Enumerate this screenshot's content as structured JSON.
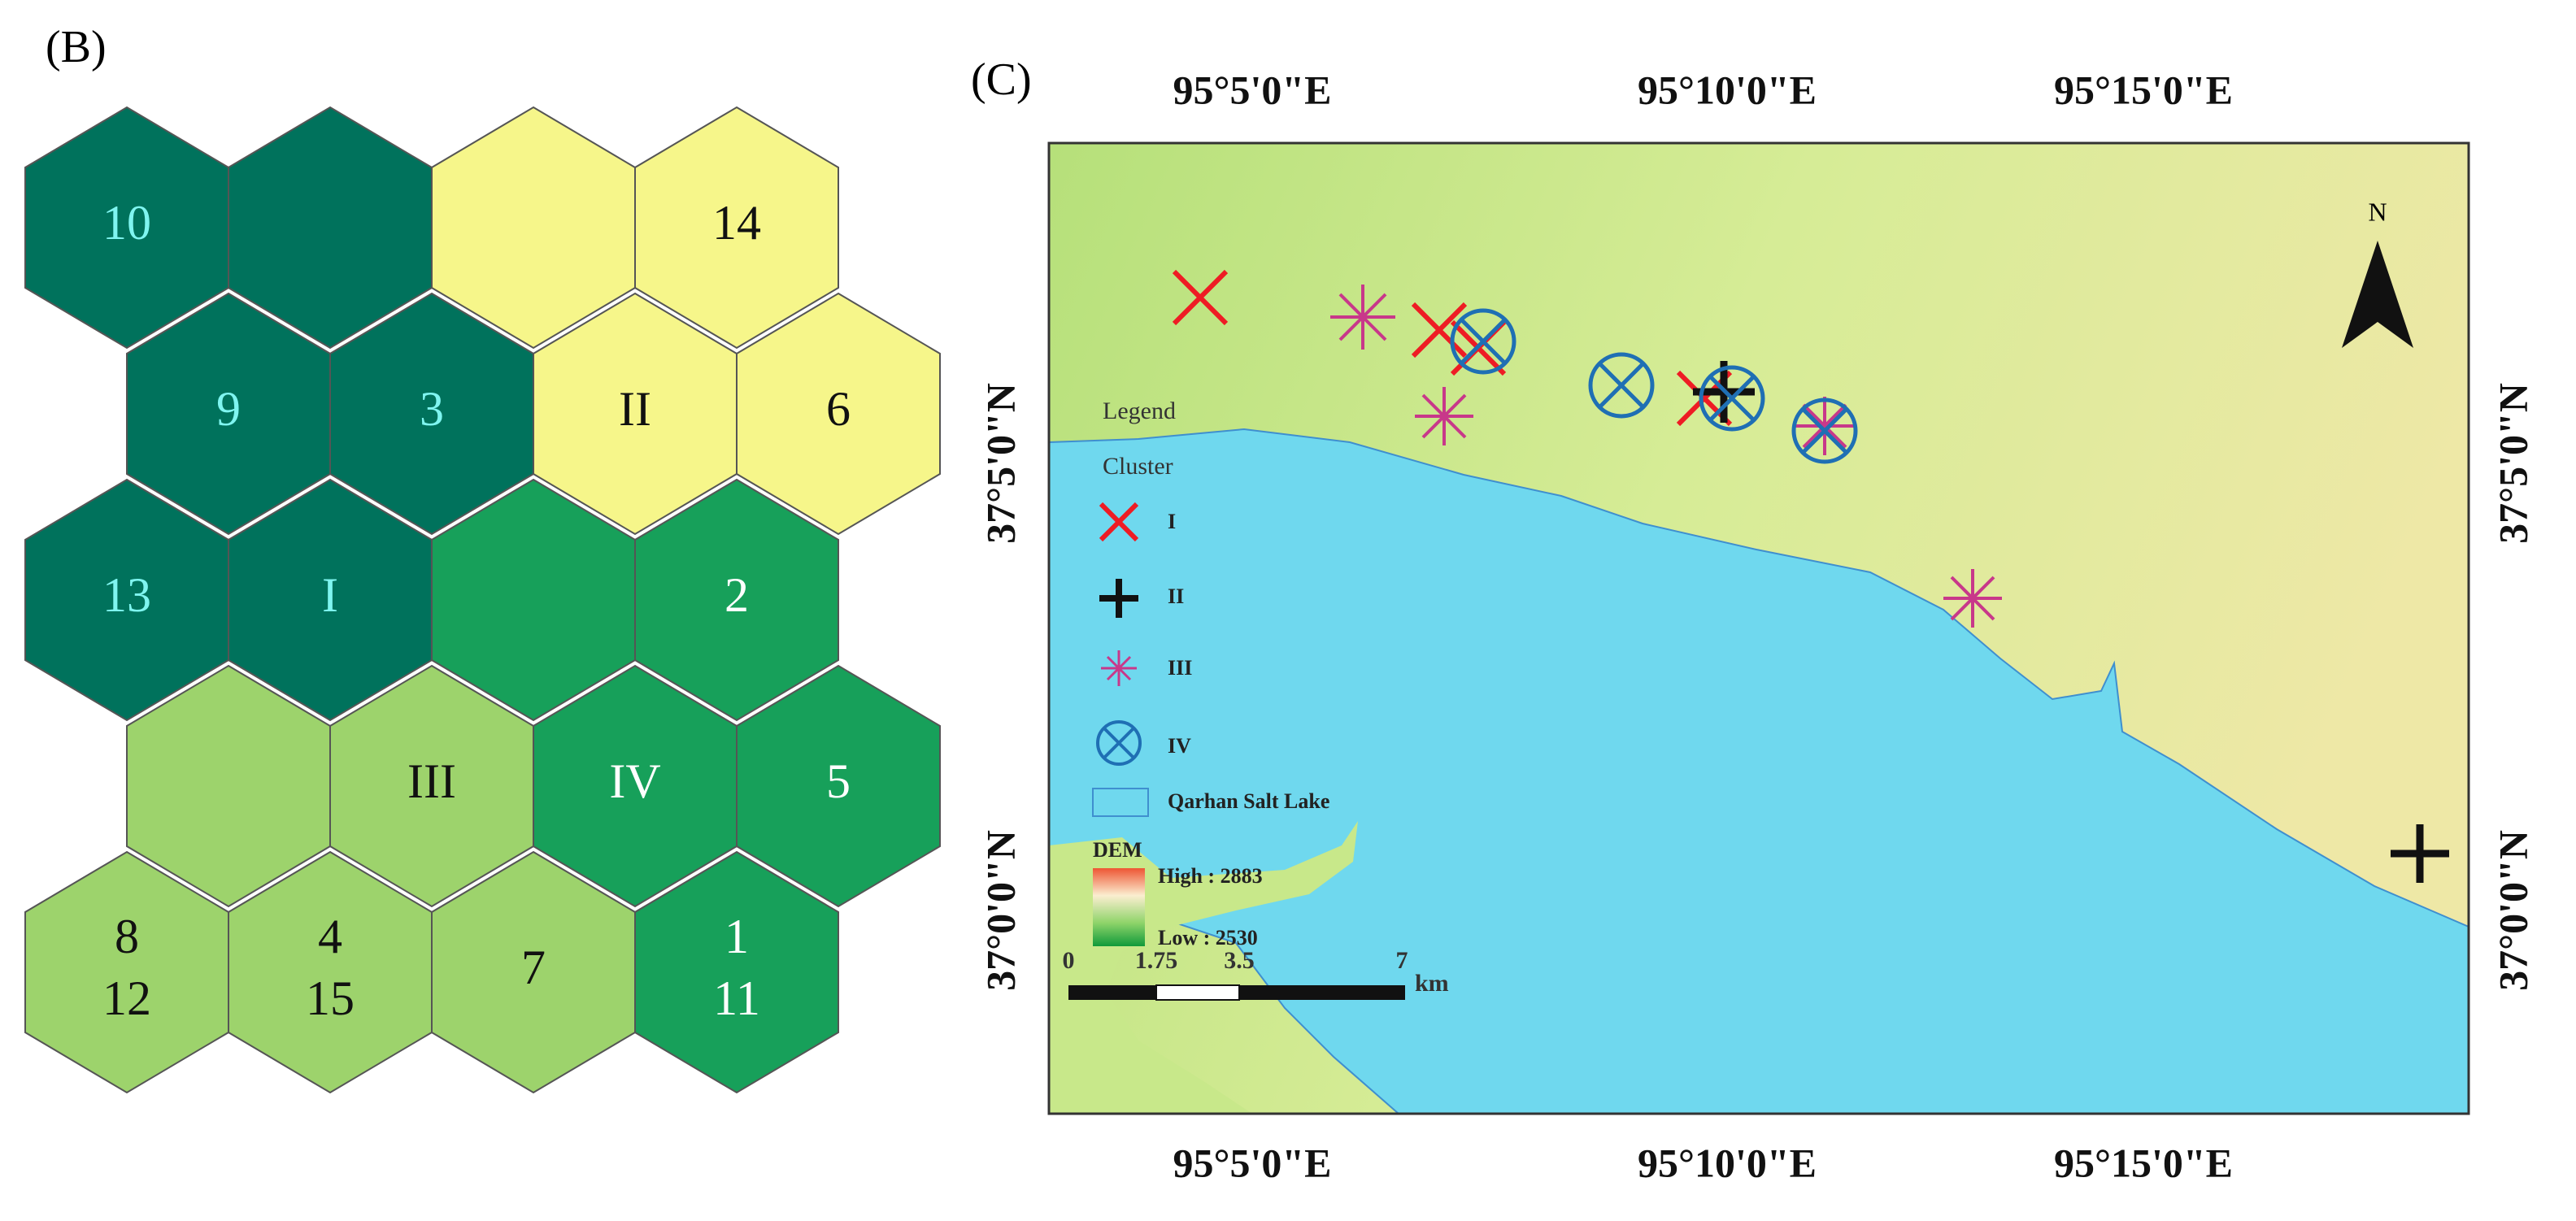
{
  "panel_b": {
    "label": "(B)",
    "rows": [
      [
        {
          "lines": [
            "10"
          ],
          "color": "#00725c",
          "text_color": "#7ff5f0"
        },
        {
          "color": "#00725c"
        },
        {
          "color": "#f6f68a"
        },
        {
          "lines": [
            "14"
          ],
          "color": "#f6f68a",
          "text_color": "#111111"
        }
      ],
      [
        {
          "lines": [
            "9"
          ],
          "color": "#00725c",
          "text_color": "#7ff5f0"
        },
        {
          "lines": [
            "3"
          ],
          "color": "#00725c",
          "text_color": "#7ff5f0"
        },
        {
          "lines": [
            "II"
          ],
          "color": "#f6f68a",
          "text_color": "#111111"
        },
        {
          "lines": [
            "6"
          ],
          "color": "#f6f68a",
          "text_color": "#111111"
        }
      ],
      [
        {
          "lines": [
            "13"
          ],
          "color": "#00725c",
          "text_color": "#7ff5f0"
        },
        {
          "lines": [
            "I"
          ],
          "color": "#00725c",
          "text_color": "#7ff5f0"
        },
        {
          "color": "#17a05a"
        },
        {
          "lines": [
            "2"
          ],
          "color": "#17a05a",
          "text_color": "#ffffff"
        }
      ],
      [
        {
          "color": "#9dd36c"
        },
        {
          "lines": [
            "III"
          ],
          "color": "#9dd36c",
          "text_color": "#111111"
        },
        {
          "lines": [
            "IV"
          ],
          "color": "#17a05a",
          "text_color": "#ffffff"
        },
        {
          "lines": [
            "5"
          ],
          "color": "#17a05a",
          "text_color": "#ffffff"
        }
      ],
      [
        {
          "lines": [
            "8",
            "12"
          ],
          "color": "#9dd36c",
          "text_color": "#111111"
        },
        {
          "lines": [
            "4",
            "15"
          ],
          "color": "#9dd36c",
          "text_color": "#111111"
        },
        {
          "lines": [
            "7"
          ],
          "color": "#9dd36c",
          "text_color": "#111111"
        },
        {
          "lines": [
            "1",
            "11"
          ],
          "color": "#17a05a",
          "text_color": "#ffffff"
        }
      ]
    ]
  },
  "panel_c": {
    "label": "(C)",
    "longitudes": [
      "95°5'0\"E",
      "95°10'0\"E",
      "95°15'0\"E"
    ],
    "latitudes": [
      "37°5'0\"N",
      "37°0'0\"N"
    ],
    "north": "N",
    "legend": {
      "title": "Legend",
      "cluster_title": "Cluster",
      "clusters": [
        "I",
        "II",
        "III",
        "IV"
      ],
      "lake": "Qarhan Salt Lake",
      "dem_title": "DEM",
      "dem_high": "High : 2883",
      "dem_low": "Low : 2530"
    },
    "scale_labels": [
      "0",
      "1.75",
      "3.5",
      "7"
    ],
    "scale_unit": "km"
  }
}
